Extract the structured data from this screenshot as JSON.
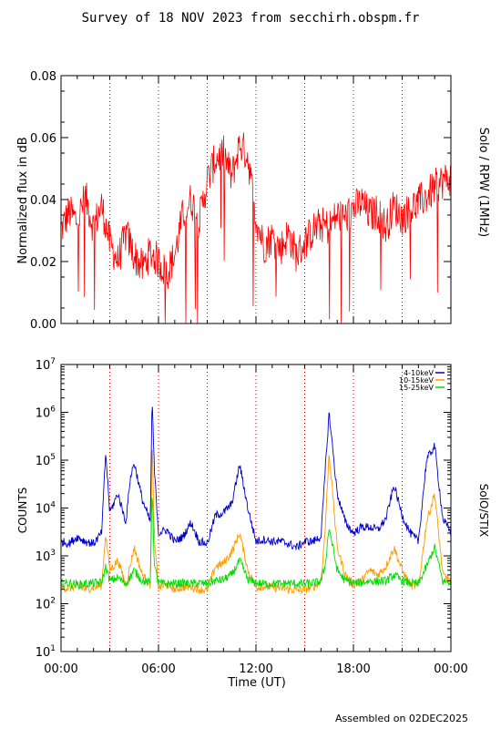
{
  "header": {
    "title": "Survey of 18 NOV 2023 from secchirh.obspm.fr"
  },
  "footer": {
    "assembled": "Assembled on 02DEC2025"
  },
  "colors": {
    "rpw": "#ff0000",
    "low": "#0000cc",
    "mid": "#ff9900",
    "high": "#00dd00",
    "grid": "#cc0000"
  },
  "chart_data": [
    {
      "type": "line",
      "title": "",
      "side_label": "Solo / RPW (1MHz)",
      "ylabel": "Normalized flux in dB",
      "xlabel": "",
      "xlim": [
        0,
        24
      ],
      "ylim": [
        0.0,
        0.08
      ],
      "y_ticks": [
        "0.00",
        "0.02",
        "0.04",
        "0.06",
        "0.08"
      ],
      "x_ticks_hours": [
        0,
        6,
        12,
        18,
        24
      ],
      "x_grid_hours": [
        3,
        6,
        9,
        12,
        15,
        18,
        21
      ],
      "grid": "vertical dotted",
      "series": [
        {
          "x": [
            0,
            0.5,
            1,
            1.5,
            2,
            2.5,
            3,
            3.5,
            4,
            4.5,
            5,
            5.5,
            6,
            6.5,
            7,
            7.5,
            8,
            8.5,
            9,
            9.5,
            10,
            10.5,
            11,
            11.5,
            12,
            12.5,
            13,
            13.5,
            14,
            14.5,
            15,
            15.5,
            16,
            16.5,
            17,
            17.5,
            18,
            18.5,
            19,
            19.5,
            20,
            20.5,
            21,
            21.5,
            22,
            22.5,
            23,
            23.5,
            24
          ],
          "values": [
            0.03,
            0.036,
            0.033,
            0.041,
            0.031,
            0.038,
            0.026,
            0.02,
            0.029,
            0.022,
            0.018,
            0.023,
            0.02,
            0.016,
            0.022,
            0.035,
            0.04,
            0.033,
            0.046,
            0.053,
            0.055,
            0.047,
            0.058,
            0.054,
            0.034,
            0.025,
            0.028,
            0.024,
            0.029,
            0.022,
            0.026,
            0.03,
            0.032,
            0.031,
            0.035,
            0.034,
            0.037,
            0.039,
            0.035,
            0.036,
            0.031,
            0.038,
            0.034,
            0.037,
            0.039,
            0.041,
            0.044,
            0.046,
            0.047
          ]
        }
      ]
    },
    {
      "type": "line",
      "title": "",
      "side_label": "SolO/STIX",
      "ylabel": "COUNTS",
      "xlabel": "Time (UT)",
      "xlim": [
        0,
        24
      ],
      "ylim": [
        10,
        10000000
      ],
      "y_scale": "log",
      "y_tick_bases": [
        "10",
        "10",
        "10",
        "10",
        "10",
        "10",
        "10"
      ],
      "y_tick_exps": [
        "1",
        "2",
        "3",
        "4",
        "5",
        "6",
        "7"
      ],
      "x_tick_labels": [
        "00:00",
        "06:00",
        "12:00",
        "18:00",
        "00:00"
      ],
      "x_ticks_hours": [
        0,
        6,
        12,
        18,
        24
      ],
      "x_grid_hours": [
        3,
        6,
        9,
        12,
        15,
        18,
        21
      ],
      "grid": "vertical dotted",
      "legend_placement": "top-right",
      "series": [
        {
          "name": "4-10keV",
          "x": [
            0,
            0.5,
            1,
            1.5,
            2,
            2.5,
            2.75,
            3,
            3.5,
            4,
            4.25,
            4.5,
            5,
            5.5,
            5.6,
            5.75,
            6,
            6.5,
            7,
            7.5,
            8,
            8.5,
            9,
            9.5,
            10,
            10.5,
            11,
            11.5,
            12,
            12.5,
            13,
            13.5,
            14,
            14.5,
            15,
            15.5,
            16,
            16.25,
            16.5,
            17,
            17.5,
            18,
            18.5,
            19,
            19.5,
            20,
            20.5,
            21,
            21.5,
            22,
            22.5,
            23,
            23.5,
            24
          ],
          "values": [
            2000,
            1800,
            2500,
            2000,
            1800,
            3000,
            150000,
            8000,
            20000,
            5000,
            40000,
            90000,
            15000,
            5000,
            2000000,
            60000,
            3000,
            3500,
            2000,
            2500,
            5000,
            2000,
            1800,
            7000,
            8000,
            12000,
            80000,
            10000,
            2000,
            2200,
            2000,
            2000,
            1800,
            1500,
            2000,
            2000,
            2500,
            50000,
            1000000,
            20000,
            5000,
            3000,
            4000,
            4000,
            3500,
            6000,
            30000,
            7000,
            3000,
            2000,
            100000,
            200000,
            6000,
            3000
          ]
        },
        {
          "name": "10-15keV",
          "x": [
            0,
            0.5,
            1,
            1.5,
            2,
            2.5,
            2.75,
            3,
            3.5,
            4,
            4.5,
            5,
            5.5,
            5.6,
            5.75,
            6,
            6.5,
            7,
            7.5,
            8,
            8.5,
            9,
            9.5,
            10,
            10.5,
            11,
            11.5,
            12,
            12.5,
            13,
            13.5,
            14,
            14.5,
            15,
            15.5,
            16,
            16.25,
            16.5,
            17,
            17.5,
            18,
            18.5,
            19,
            19.5,
            20,
            20.5,
            21,
            21.5,
            22,
            22.5,
            23,
            23.5,
            24
          ],
          "values": [
            220,
            210,
            230,
            200,
            220,
            240,
            3000,
            500,
            800,
            250,
            1500,
            400,
            250,
            300000,
            2000,
            220,
            250,
            200,
            220,
            230,
            200,
            190,
            600,
            700,
            1200,
            3000,
            500,
            220,
            230,
            220,
            210,
            200,
            190,
            200,
            220,
            300,
            3000,
            150000,
            1500,
            400,
            250,
            300,
            500,
            400,
            600,
            1500,
            500,
            250,
            220,
            5000,
            20000,
            400,
            300
          ]
        },
        {
          "name": "15-25keV",
          "x": [
            0,
            0.5,
            1,
            1.5,
            2,
            2.5,
            2.75,
            3,
            3.5,
            4,
            4.5,
            5,
            5.5,
            5.6,
            5.75,
            6,
            6.5,
            7,
            7.5,
            8,
            8.5,
            9,
            9.5,
            10,
            10.5,
            11,
            11.5,
            12,
            12.5,
            13,
            13.5,
            14,
            14.5,
            15,
            15.5,
            16,
            16.25,
            16.5,
            17,
            17.5,
            18,
            18.5,
            19,
            19.5,
            20,
            20.5,
            21,
            21.5,
            22,
            22.5,
            23,
            23.5,
            24
          ],
          "values": [
            260,
            270,
            250,
            260,
            270,
            280,
            600,
            300,
            350,
            260,
            500,
            300,
            270,
            30000,
            600,
            270,
            260,
            260,
            270,
            260,
            270,
            260,
            300,
            320,
            400,
            800,
            320,
            270,
            260,
            260,
            260,
            270,
            260,
            260,
            270,
            290,
            600,
            4000,
            500,
            300,
            270,
            280,
            300,
            290,
            300,
            400,
            300,
            270,
            260,
            600,
            1500,
            290,
            280
          ]
        }
      ]
    }
  ]
}
